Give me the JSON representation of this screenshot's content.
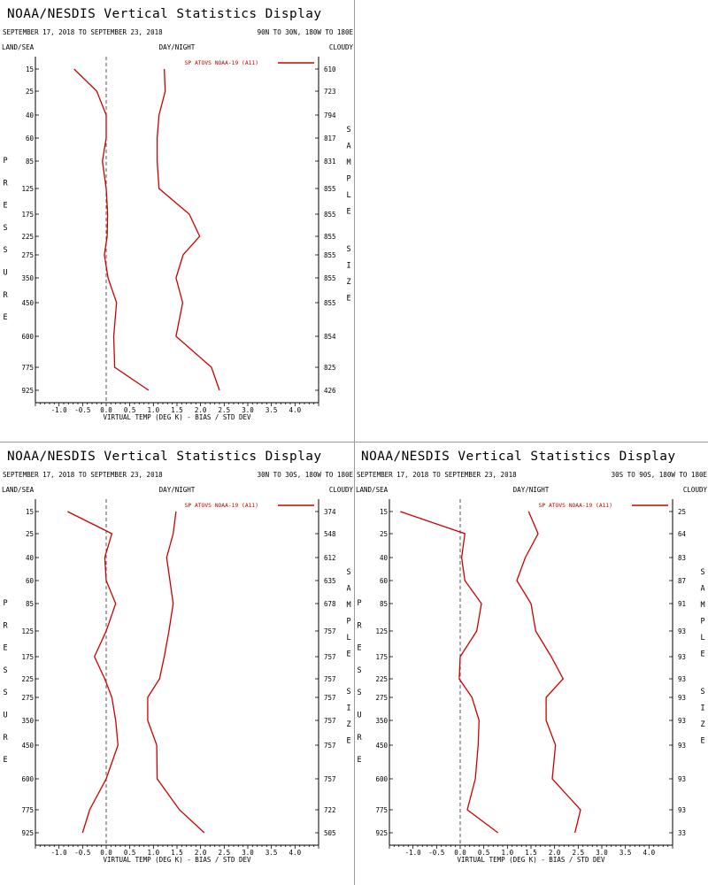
{
  "colors": {
    "series": "#cc0000",
    "axis": "#000000",
    "zero_line": "#555555",
    "divider": "#9a9a9a",
    "background": "#ffffff"
  },
  "panels": [
    {
      "title": "NOAA/NESDIS Vertical Statistics Display",
      "dates": "SEPTEMBER 17, 2018 TO SEPTEMBER 23, 2018",
      "region": "90N TO 30N, 180W TO 180E",
      "label_land_sea": "LAND/SEA",
      "label_day_night": "DAY/NIGHT",
      "label_cloudy": "CLOUDY",
      "legend": "SP ATOVS NOAA-19 (A11)",
      "xlabel": "VIRTUAL TEMP (DEG K) - BIAS / STD DEV",
      "left_axis_letters": [
        "P",
        "R",
        "E",
        "S",
        "S",
        "U",
        "R",
        "E"
      ],
      "right_axis_letters": [
        "S",
        "A",
        "M",
        "P",
        "L",
        "E",
        "S",
        "I",
        "Z",
        "E"
      ],
      "right_axis_gap_after": 6
    },
    {
      "title": "NOAA/NESDIS Vertical Statistics Display",
      "dates": "SEPTEMBER 17, 2018 TO SEPTEMBER 23, 2018",
      "region": "30N TO 30S, 180W TO 180E",
      "label_land_sea": "LAND/SEA",
      "label_day_night": "DAY/NIGHT",
      "label_cloudy": "CLOUDY",
      "legend": "SP ATOVS NOAA-19 (A11)",
      "xlabel": "VIRTUAL TEMP (DEG K) - BIAS / STD DEV",
      "left_axis_letters": [
        "P",
        "R",
        "E",
        "S",
        "S",
        "U",
        "R",
        "E"
      ],
      "right_axis_letters": [
        "S",
        "A",
        "M",
        "P",
        "L",
        "E",
        "S",
        "I",
        "Z",
        "E"
      ],
      "right_axis_gap_after": 6
    },
    {
      "title": "NOAA/NESDIS Vertical Statistics Display",
      "dates": "SEPTEMBER 17, 2018 TO SEPTEMBER 23, 2018",
      "region": "30S TO 90S, 180W TO 180E",
      "label_land_sea": "LAND/SEA",
      "label_day_night": "DAY/NIGHT",
      "label_cloudy": "CLOUDY",
      "legend": "SP ATOVS NOAA-19 (A11)",
      "xlabel": "VIRTUAL TEMP (DEG K) - BIAS / STD DEV",
      "left_axis_letters": [
        "P",
        "R",
        "E",
        "S",
        "S",
        "U",
        "R",
        "E"
      ],
      "right_axis_letters": [
        "S",
        "A",
        "M",
        "P",
        "L",
        "E",
        "S",
        "I",
        "Z",
        "E"
      ],
      "right_axis_gap_after": 6
    }
  ],
  "chart_data": [
    {
      "type": "line",
      "title": "NOAA/NESDIS Vertical Statistics Display",
      "xlabel": "VIRTUAL TEMP (DEG K) - BIAS / STD DEV",
      "ylabel": "PRESSURE",
      "y2label": "SAMPLE SIZE",
      "xlim": [
        -1.5,
        4.5
      ],
      "xticks": [
        "-1.0",
        "-0.5",
        "0.0",
        "0.5",
        "1.0",
        "1.5",
        "2.0",
        "2.5",
        "3.0",
        "3.5",
        "4.0"
      ],
      "pressure_levels": [
        "15",
        "25",
        "40",
        "60",
        "85",
        "125",
        "175",
        "225",
        "275",
        "350",
        "450",
        "600",
        "775",
        "925"
      ],
      "sample_size": [
        "610",
        "723",
        "794",
        "817",
        "831",
        "855",
        "855",
        "855",
        "855",
        "855",
        "855",
        "854",
        "825",
        "426"
      ],
      "series": [
        {
          "name": "SP ATOVS NOAA-19 (A11)",
          "stat": "bias",
          "values": [
            -0.68,
            -0.2,
            0.0,
            0.0,
            -0.08,
            0.0,
            0.03,
            0.02,
            -0.04,
            0.04,
            0.22,
            0.16,
            0.18,
            0.9
          ]
        },
        {
          "name": "SP ATOVS NOAA-19 (A11)",
          "stat": "std_dev",
          "values": [
            1.23,
            1.25,
            1.12,
            1.08,
            1.08,
            1.12,
            1.76,
            1.98,
            1.63,
            1.48,
            1.62,
            1.48,
            2.23,
            2.4
          ]
        }
      ]
    },
    {
      "type": "line",
      "title": "NOAA/NESDIS Vertical Statistics Display",
      "xlabel": "VIRTUAL TEMP (DEG K) - BIAS / STD DEV",
      "ylabel": "PRESSURE",
      "y2label": "SAMPLE SIZE",
      "xlim": [
        -1.5,
        4.5
      ],
      "xticks": [
        "-1.0",
        "-0.5",
        "0.0",
        "0.5",
        "1.0",
        "1.5",
        "2.0",
        "2.5",
        "3.0",
        "3.5",
        "4.0"
      ],
      "pressure_levels": [
        "15",
        "25",
        "40",
        "60",
        "85",
        "125",
        "175",
        "225",
        "275",
        "350",
        "450",
        "600",
        "775",
        "925"
      ],
      "sample_size": [
        "374",
        "548",
        "612",
        "635",
        "678",
        "757",
        "757",
        "757",
        "757",
        "757",
        "757",
        "757",
        "722",
        "505"
      ],
      "series": [
        {
          "name": "SP ATOVS NOAA-19 (A11)",
          "stat": "bias",
          "values": [
            -0.82,
            0.12,
            -0.03,
            0.0,
            0.2,
            0.0,
            -0.25,
            -0.03,
            0.12,
            0.2,
            0.25,
            0.0,
            -0.35,
            -0.5
          ]
        },
        {
          "name": "SP ATOVS NOAA-19 (A11)",
          "stat": "std_dev",
          "values": [
            1.48,
            1.42,
            1.28,
            1.35,
            1.42,
            1.33,
            1.23,
            1.13,
            0.88,
            0.88,
            1.07,
            1.08,
            1.55,
            2.08
          ]
        }
      ]
    },
    {
      "type": "line",
      "title": "NOAA/NESDIS Vertical Statistics Display",
      "xlabel": "VIRTUAL TEMP (DEG K) - BIAS / STD DEV",
      "ylabel": "PRESSURE",
      "y2label": "SAMPLE SIZE",
      "xlim": [
        -1.5,
        4.5
      ],
      "xticks": [
        "-1.0",
        "-0.5",
        "0.0",
        "0.5",
        "1.0",
        "1.5",
        "2.0",
        "2.5",
        "3.0",
        "3.5",
        "4.0"
      ],
      "pressure_levels": [
        "15",
        "25",
        "40",
        "60",
        "85",
        "125",
        "175",
        "225",
        "275",
        "350",
        "450",
        "600",
        "775",
        "925"
      ],
      "sample_size": [
        "25",
        "64",
        "83",
        "87",
        "91",
        "93",
        "93",
        "93",
        "93",
        "93",
        "93",
        "93",
        "93",
        "33"
      ],
      "series": [
        {
          "name": "SP ATOVS NOAA-19 (A11)",
          "stat": "bias",
          "values": [
            -1.27,
            0.1,
            0.03,
            0.1,
            0.45,
            0.35,
            0.0,
            -0.02,
            0.25,
            0.4,
            0.38,
            0.32,
            0.15,
            0.8
          ]
        },
        {
          "name": "SP ATOVS NOAA-19 (A11)",
          "stat": "std_dev",
          "values": [
            1.45,
            1.65,
            1.38,
            1.2,
            1.5,
            1.6,
            1.93,
            2.18,
            1.82,
            1.82,
            2.02,
            1.95,
            2.55,
            2.43
          ]
        }
      ]
    }
  ]
}
